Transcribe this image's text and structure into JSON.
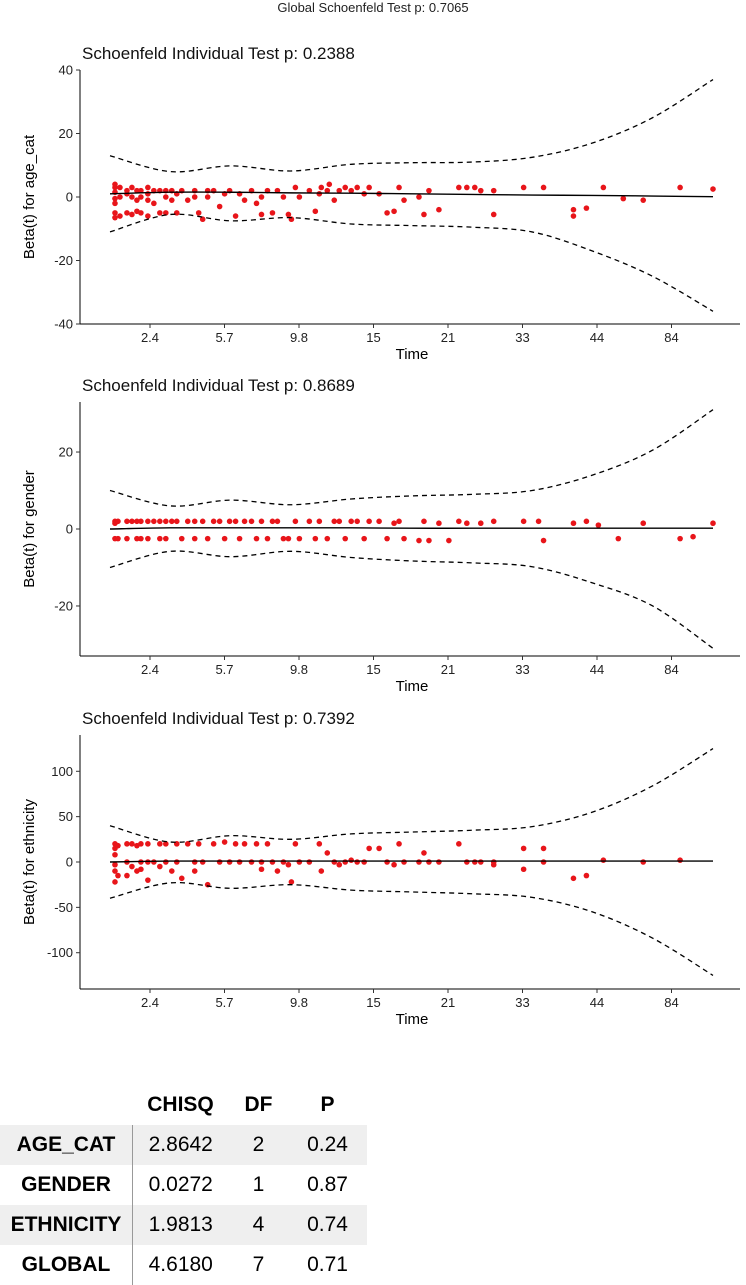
{
  "global_title": "Global Schoenfeld Test p: 0.7065",
  "chart_data": [
    {
      "type": "scatter",
      "title": "Schoenfeld Individual Test p: 0.2388",
      "xlabel": "Time",
      "ylabel": "Beta(t) for age_cat",
      "x_tick_labels": [
        "2.4",
        "5.7",
        "9.8",
        "15",
        "21",
        "33",
        "44",
        "84"
      ],
      "y_ticks": [
        -40,
        -20,
        0,
        20,
        40
      ],
      "ylim": [
        -40,
        40
      ],
      "grid": false,
      "lines": [
        {
          "role": "fit",
          "style": "solid",
          "y": [
            1,
            1.5,
            1.5,
            1.3,
            1.2,
            1.0,
            0.8,
            0.6,
            0.5,
            0.3,
            0.1
          ]
        },
        {
          "role": "upper-band",
          "style": "dashed",
          "y": [
            13,
            8,
            9.8,
            8.2,
            10.3,
            10.8,
            11,
            12.5,
            17,
            25,
            37
          ]
        },
        {
          "role": "lower-band",
          "style": "dashed",
          "y": [
            -11,
            -5.5,
            -7.5,
            -6.5,
            -8.5,
            -9,
            -9.5,
            -11,
            -17,
            -25,
            -36
          ]
        }
      ],
      "points": [
        [
          0.05,
          4
        ],
        [
          0.05,
          3
        ],
        [
          0.05,
          1.5
        ],
        [
          0.05,
          -0.5
        ],
        [
          0.05,
          -2
        ],
        [
          0.05,
          -5
        ],
        [
          0.05,
          -6.5
        ],
        [
          0.1,
          3
        ],
        [
          0.1,
          0
        ],
        [
          0.1,
          -6
        ],
        [
          0.17,
          2
        ],
        [
          0.17,
          1
        ],
        [
          0.17,
          -5
        ],
        [
          0.22,
          3
        ],
        [
          0.22,
          0
        ],
        [
          0.22,
          -5.5
        ],
        [
          0.27,
          2
        ],
        [
          0.27,
          -1
        ],
        [
          0.27,
          -4.5
        ],
        [
          0.31,
          2
        ],
        [
          0.31,
          0
        ],
        [
          0.31,
          -5
        ],
        [
          0.38,
          3
        ],
        [
          0.38,
          1
        ],
        [
          0.38,
          -1
        ],
        [
          0.38,
          -6
        ],
        [
          0.44,
          2
        ],
        [
          0.44,
          -2
        ],
        [
          0.5,
          2
        ],
        [
          0.5,
          -5
        ],
        [
          0.56,
          2
        ],
        [
          0.56,
          0
        ],
        [
          0.56,
          -5
        ],
        [
          0.62,
          2
        ],
        [
          0.62,
          -1
        ],
        [
          0.67,
          1
        ],
        [
          0.67,
          -5
        ],
        [
          0.72,
          2
        ],
        [
          0.78,
          -1
        ],
        [
          0.85,
          2
        ],
        [
          0.85,
          0
        ],
        [
          0.89,
          -5
        ],
        [
          0.93,
          -7
        ],
        [
          0.98,
          2
        ],
        [
          0.98,
          0
        ],
        [
          1.04,
          2
        ],
        [
          1.1,
          -3
        ],
        [
          1.15,
          1
        ],
        [
          1.2,
          2
        ],
        [
          1.26,
          -6
        ],
        [
          1.3,
          1
        ],
        [
          1.35,
          -1
        ],
        [
          1.42,
          2
        ],
        [
          1.47,
          -2
        ],
        [
          1.52,
          -5.5
        ],
        [
          1.52,
          0
        ],
        [
          1.58,
          2
        ],
        [
          1.63,
          -5
        ],
        [
          1.68,
          2
        ],
        [
          1.74,
          0
        ],
        [
          1.79,
          -5.5
        ],
        [
          1.82,
          -7
        ],
        [
          1.86,
          3
        ],
        [
          1.9,
          0
        ],
        [
          2.0,
          2
        ],
        [
          2.06,
          -4.5
        ],
        [
          2.1,
          1
        ],
        [
          2.12,
          3
        ],
        [
          2.18,
          2
        ],
        [
          2.2,
          4
        ],
        [
          2.25,
          -1
        ],
        [
          2.3,
          2
        ],
        [
          2.36,
          3
        ],
        [
          2.42,
          2
        ],
        [
          2.48,
          3
        ],
        [
          2.55,
          1
        ],
        [
          2.6,
          3
        ],
        [
          2.7,
          1
        ],
        [
          2.78,
          -5
        ],
        [
          2.85,
          -4.5
        ],
        [
          2.9,
          3
        ],
        [
          2.95,
          -1
        ],
        [
          3.1,
          0
        ],
        [
          3.15,
          -5.5
        ],
        [
          3.2,
          2
        ],
        [
          3.3,
          -4
        ],
        [
          3.5,
          3
        ],
        [
          3.58,
          3
        ],
        [
          3.66,
          3
        ],
        [
          3.72,
          2
        ],
        [
          3.85,
          -5.5
        ],
        [
          3.85,
          2
        ],
        [
          4.15,
          3
        ],
        [
          4.35,
          3
        ],
        [
          4.65,
          -6
        ],
        [
          4.65,
          -4
        ],
        [
          4.78,
          -3.5
        ],
        [
          4.95,
          3
        ],
        [
          5.15,
          -0.5
        ],
        [
          5.35,
          -1
        ],
        [
          5.72,
          3
        ],
        [
          6.05,
          2.5
        ]
      ]
    },
    {
      "type": "scatter",
      "title": "Schoenfeld Individual Test p: 0.8689",
      "xlabel": "Time",
      "ylabel": "Beta(t) for gender",
      "x_tick_labels": [
        "2.4",
        "5.7",
        "9.8",
        "15",
        "21",
        "33",
        "44",
        "84"
      ],
      "y_ticks": [
        -20,
        0,
        20
      ],
      "ylim": [
        -33,
        33
      ],
      "grid": false,
      "lines": [
        {
          "role": "fit",
          "style": "solid",
          "y": [
            0,
            0.3,
            0.3,
            0.3,
            0.3,
            0.2,
            0.2,
            0.2,
            0.2,
            0.2,
            0.2
          ]
        },
        {
          "role": "upper-band",
          "style": "dashed",
          "y": [
            10,
            6,
            7.5,
            6.3,
            7.8,
            8.6,
            9,
            10,
            14,
            20.5,
            31
          ]
        },
        {
          "role": "lower-band",
          "style": "dashed",
          "y": [
            -10,
            -5.8,
            -7.2,
            -5.8,
            -7.4,
            -8.3,
            -8.8,
            -9.8,
            -14,
            -20,
            -31
          ]
        }
      ],
      "points": [
        [
          0.05,
          2
        ],
        [
          0.05,
          1.5
        ],
        [
          0.05,
          -2.5
        ],
        [
          0.08,
          2
        ],
        [
          0.08,
          -2.5
        ],
        [
          0.17,
          2
        ],
        [
          0.17,
          -2.5
        ],
        [
          0.22,
          2
        ],
        [
          0.27,
          2
        ],
        [
          0.27,
          -2.5
        ],
        [
          0.31,
          2
        ],
        [
          0.31,
          -2.5
        ],
        [
          0.38,
          2
        ],
        [
          0.38,
          -2.5
        ],
        [
          0.44,
          2
        ],
        [
          0.5,
          2
        ],
        [
          0.5,
          -2.5
        ],
        [
          0.56,
          2
        ],
        [
          0.56,
          -2.5
        ],
        [
          0.62,
          2
        ],
        [
          0.67,
          2
        ],
        [
          0.72,
          -2.5
        ],
        [
          0.78,
          2
        ],
        [
          0.85,
          2
        ],
        [
          0.85,
          -2.5
        ],
        [
          0.93,
          2
        ],
        [
          0.98,
          -2.5
        ],
        [
          1.04,
          2
        ],
        [
          1.1,
          2
        ],
        [
          1.15,
          -2.5
        ],
        [
          1.2,
          2
        ],
        [
          1.26,
          2
        ],
        [
          1.3,
          -2.5
        ],
        [
          1.35,
          2
        ],
        [
          1.42,
          2
        ],
        [
          1.47,
          -2.5
        ],
        [
          1.52,
          2
        ],
        [
          1.58,
          -2.5
        ],
        [
          1.63,
          2
        ],
        [
          1.68,
          2
        ],
        [
          1.74,
          -2.5
        ],
        [
          1.79,
          -2.5
        ],
        [
          1.86,
          2
        ],
        [
          1.9,
          -2.5
        ],
        [
          2.0,
          2
        ],
        [
          2.06,
          -2.5
        ],
        [
          2.1,
          2
        ],
        [
          2.18,
          -2.5
        ],
        [
          2.25,
          2
        ],
        [
          2.3,
          2
        ],
        [
          2.36,
          -2.5
        ],
        [
          2.42,
          2
        ],
        [
          2.48,
          2
        ],
        [
          2.55,
          -2.5
        ],
        [
          2.6,
          2
        ],
        [
          2.7,
          2
        ],
        [
          2.78,
          -2.5
        ],
        [
          2.85,
          1.5
        ],
        [
          2.9,
          2
        ],
        [
          2.95,
          -2.5
        ],
        [
          3.1,
          -3
        ],
        [
          3.15,
          2
        ],
        [
          3.2,
          -3
        ],
        [
          3.3,
          1.5
        ],
        [
          3.4,
          -3
        ],
        [
          3.5,
          2
        ],
        [
          3.58,
          1.5
        ],
        [
          3.72,
          1.5
        ],
        [
          3.85,
          2
        ],
        [
          4.15,
          2
        ],
        [
          4.3,
          2
        ],
        [
          4.35,
          -3
        ],
        [
          4.65,
          1.5
        ],
        [
          4.78,
          2
        ],
        [
          4.9,
          1
        ],
        [
          5.1,
          -2.5
        ],
        [
          5.35,
          1.5
        ],
        [
          5.72,
          -2.5
        ],
        [
          5.85,
          -2
        ],
        [
          6.05,
          1.5
        ]
      ]
    },
    {
      "type": "scatter",
      "title": "Schoenfeld Individual Test p: 0.7392",
      "xlabel": "Time",
      "ylabel": "Beta(t) for ethnicity",
      "x_tick_labels": [
        "2.4",
        "5.7",
        "9.8",
        "15",
        "21",
        "33",
        "44",
        "84"
      ],
      "y_ticks": [
        -100,
        -50,
        0,
        50,
        100
      ],
      "ylim": [
        -140,
        140
      ],
      "grid": false,
      "lines": [
        {
          "role": "fit",
          "style": "solid",
          "y": [
            0,
            1,
            1,
            1,
            1,
            1,
            1,
            1,
            1,
            1,
            1
          ]
        },
        {
          "role": "upper-band",
          "style": "dashed",
          "y": [
            40,
            22,
            29,
            25,
            31,
            33,
            35,
            39,
            55,
            84,
            125
          ]
        },
        {
          "role": "lower-band",
          "style": "dashed",
          "y": [
            -40,
            -23,
            -29,
            -25,
            -31,
            -33,
            -35,
            -39,
            -55,
            -84,
            -125
          ]
        }
      ],
      "points": [
        [
          0.05,
          20
        ],
        [
          0.05,
          15
        ],
        [
          0.05,
          8
        ],
        [
          0.05,
          -3
        ],
        [
          0.05,
          -10
        ],
        [
          0.05,
          -22
        ],
        [
          0.08,
          18
        ],
        [
          0.08,
          -15
        ],
        [
          0.17,
          20
        ],
        [
          0.17,
          0
        ],
        [
          0.17,
          -15
        ],
        [
          0.22,
          20
        ],
        [
          0.22,
          -5
        ],
        [
          0.27,
          18
        ],
        [
          0.27,
          -10
        ],
        [
          0.31,
          20
        ],
        [
          0.31,
          0
        ],
        [
          0.31,
          -8
        ],
        [
          0.38,
          20
        ],
        [
          0.38,
          0
        ],
        [
          0.38,
          -20
        ],
        [
          0.44,
          0
        ],
        [
          0.5,
          20
        ],
        [
          0.5,
          -5
        ],
        [
          0.56,
          20
        ],
        [
          0.56,
          0
        ],
        [
          0.62,
          -10
        ],
        [
          0.67,
          20
        ],
        [
          0.67,
          0
        ],
        [
          0.72,
          -18
        ],
        [
          0.78,
          20
        ],
        [
          0.85,
          0
        ],
        [
          0.85,
          -10
        ],
        [
          0.89,
          20
        ],
        [
          0.93,
          0
        ],
        [
          0.98,
          -25
        ],
        [
          1.04,
          20
        ],
        [
          1.1,
          0
        ],
        [
          1.15,
          22
        ],
        [
          1.2,
          0
        ],
        [
          1.26,
          20
        ],
        [
          1.3,
          0
        ],
        [
          1.35,
          20
        ],
        [
          1.42,
          0
        ],
        [
          1.47,
          20
        ],
        [
          1.52,
          -8
        ],
        [
          1.52,
          0
        ],
        [
          1.58,
          20
        ],
        [
          1.63,
          0
        ],
        [
          1.68,
          -10
        ],
        [
          1.74,
          0
        ],
        [
          1.79,
          -3
        ],
        [
          1.82,
          -22
        ],
        [
          1.86,
          20
        ],
        [
          1.9,
          0
        ],
        [
          2.0,
          0
        ],
        [
          2.1,
          20
        ],
        [
          2.12,
          -10
        ],
        [
          2.18,
          10
        ],
        [
          2.25,
          0
        ],
        [
          2.3,
          -3
        ],
        [
          2.36,
          0
        ],
        [
          2.42,
          2
        ],
        [
          2.48,
          0
        ],
        [
          2.55,
          0
        ],
        [
          2.6,
          15
        ],
        [
          2.7,
          15
        ],
        [
          2.78,
          0
        ],
        [
          2.85,
          -3
        ],
        [
          2.9,
          20
        ],
        [
          2.95,
          0
        ],
        [
          3.1,
          0
        ],
        [
          3.15,
          10
        ],
        [
          3.2,
          0
        ],
        [
          3.3,
          0
        ],
        [
          3.5,
          20
        ],
        [
          3.58,
          0
        ],
        [
          3.66,
          0
        ],
        [
          3.72,
          0
        ],
        [
          3.85,
          -3
        ],
        [
          3.85,
          0
        ],
        [
          4.15,
          15
        ],
        [
          4.15,
          -8
        ],
        [
          4.35,
          15
        ],
        [
          4.35,
          0
        ],
        [
          4.65,
          -18
        ],
        [
          4.78,
          -15
        ],
        [
          4.95,
          2
        ],
        [
          5.35,
          0
        ],
        [
          5.72,
          2
        ]
      ]
    }
  ],
  "table": {
    "headers": [
      "",
      "CHISQ",
      "DF",
      "P"
    ],
    "rows": [
      {
        "label": "AGE_CAT",
        "chisq": "2.8642",
        "df": "2",
        "p": "0.24"
      },
      {
        "label": "GENDER",
        "chisq": "0.0272",
        "df": "1",
        "p": "0.87"
      },
      {
        "label": "ETHNICITY",
        "chisq": "1.9813",
        "df": "4",
        "p": "0.74"
      },
      {
        "label": "GLOBAL",
        "chisq": "4.6180",
        "df": "7",
        "p": "0.71"
      }
    ]
  },
  "colors": {
    "points": "#e8151a",
    "lines": "#000000",
    "table_shade": "#efefef"
  }
}
